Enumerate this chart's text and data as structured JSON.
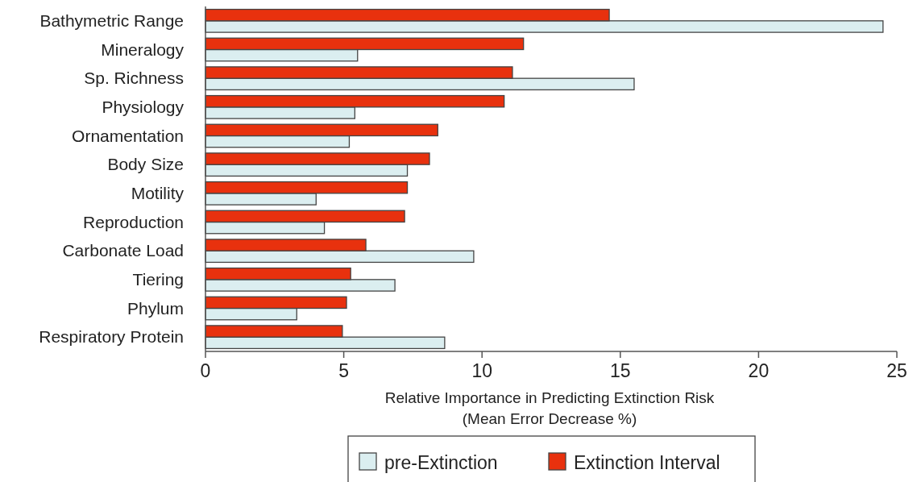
{
  "chart_data": {
    "type": "bar",
    "orientation": "horizontal",
    "xlabel": "Relative Importance in Predicting Extinction Risk\n(Mean Error Decrease %)",
    "categories": [
      "Bathymetric Range",
      "Mineralogy",
      "Sp. Richness",
      "Physiology",
      "Ornamentation",
      "Body Size",
      "Motility",
      "Reproduction",
      "Carbonate Load",
      "Tiering",
      "Phylum",
      "Respiratory Protein"
    ],
    "series": [
      {
        "name": "pre-Extinction",
        "color": "#dbeef0",
        "values": [
          24.5,
          5.5,
          15.5,
          5.4,
          5.2,
          7.3,
          4.0,
          4.3,
          9.7,
          6.85,
          3.3,
          8.65
        ]
      },
      {
        "name": "Extinction Interval",
        "color": "#e8310e",
        "values": [
          14.6,
          11.5,
          11.1,
          10.8,
          8.4,
          8.1,
          7.3,
          7.2,
          5.8,
          5.25,
          5.1,
          4.95
        ]
      }
    ],
    "xlim": [
      0,
      25
    ],
    "xticks": [
      0,
      5,
      10,
      15,
      20,
      25
    ],
    "legend": "bottom",
    "grid": false
  }
}
